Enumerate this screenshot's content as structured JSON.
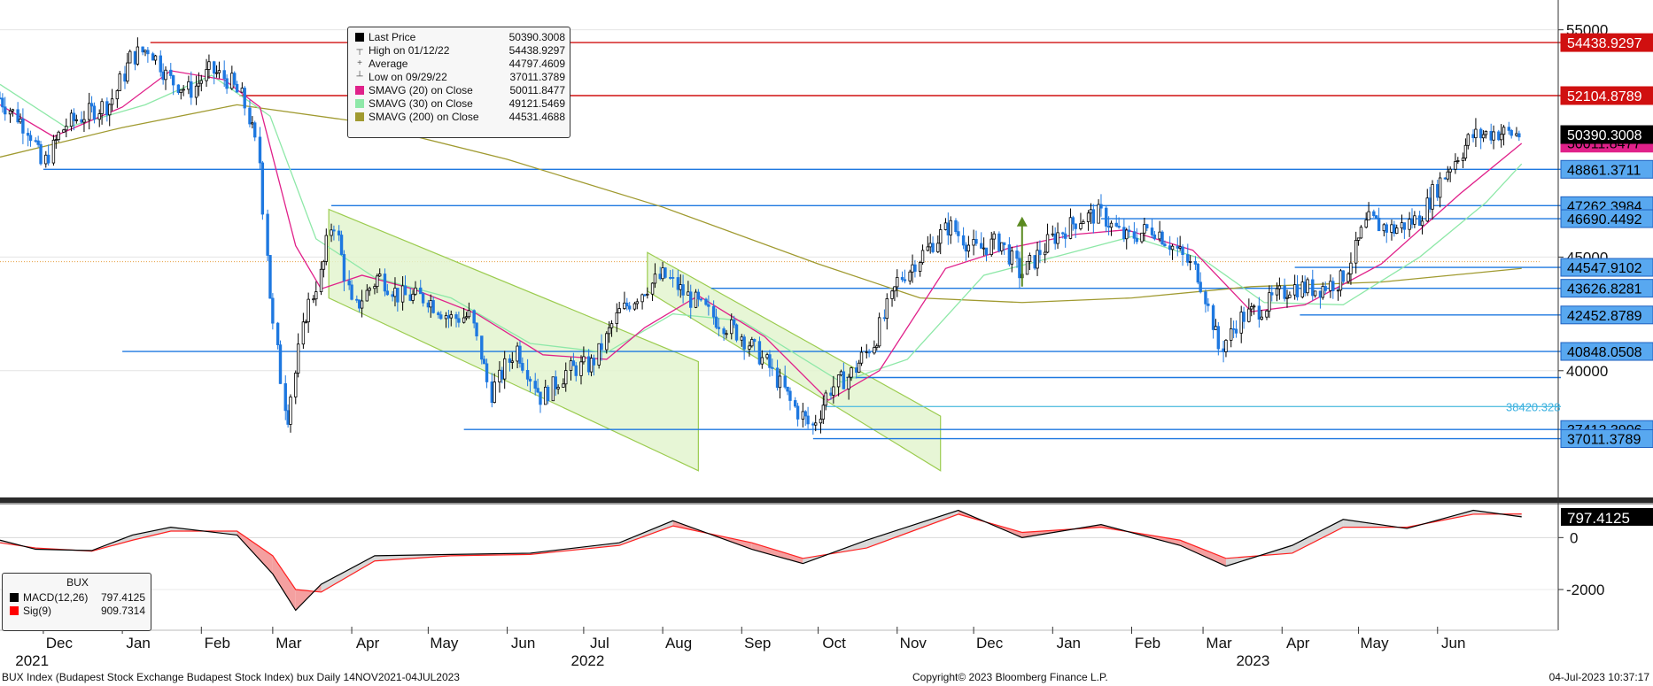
{
  "chart_data": {
    "type": "candlestick",
    "symbol": "BUX Index (Budapest Stock Exchange Budapest Stock Index) bux  Daily 14NOV2021-04JUL2023",
    "copyright": "Copyright© 2023 Bloomberg Finance L.P.",
    "timestamp": "04-Jul-2023 10:37:17",
    "price_axis": {
      "ticks": [
        "55000",
        "45000",
        "40000"
      ],
      "ylim": [
        34500,
        56000
      ]
    },
    "macd_axis": {
      "ticks": [
        "0",
        "-2000"
      ],
      "ylim": [
        -3500,
        1000
      ]
    },
    "months": [
      {
        "label": "Dec",
        "date": "2021-12-01"
      },
      {
        "label": "Jan",
        "date": "2022-01-01"
      },
      {
        "label": "Feb",
        "date": "2022-02-01"
      },
      {
        "label": "Mar",
        "date": "2022-03-01"
      },
      {
        "label": "Apr",
        "date": "2022-04-01"
      },
      {
        "label": "May",
        "date": "2022-05-01"
      },
      {
        "label": "Jun",
        "date": "2022-06-01"
      },
      {
        "label": "Jul",
        "date": "2022-07-01"
      },
      {
        "label": "Aug",
        "date": "2022-08-01"
      },
      {
        "label": "Sep",
        "date": "2022-09-01"
      },
      {
        "label": "Oct",
        "date": "2022-10-01"
      },
      {
        "label": "Nov",
        "date": "2022-11-01"
      },
      {
        "label": "Dec",
        "date": "2022-12-01"
      },
      {
        "label": "Jan",
        "date": "2023-01-01"
      },
      {
        "label": "Feb",
        "date": "2023-02-01"
      },
      {
        "label": "Mar",
        "date": "2023-03-01"
      },
      {
        "label": "Apr",
        "date": "2023-04-01"
      },
      {
        "label": "May",
        "date": "2023-05-01"
      },
      {
        "label": "Jun",
        "date": "2023-06-01"
      }
    ],
    "years": [
      {
        "label": "2021",
        "date": "2021-11-20"
      },
      {
        "label": "2022",
        "date": "2022-06-26"
      },
      {
        "label": "2023",
        "date": "2023-03-14"
      }
    ],
    "legend": {
      "last_price": {
        "label": "Last Price",
        "value": "50390.3008",
        "color": "#000000"
      },
      "high": {
        "label": "High on 01/12/22",
        "value": "54438.9297"
      },
      "average": {
        "label": "Average",
        "value": "44797.4609"
      },
      "low": {
        "label": "Low on 09/29/22",
        "value": "37011.3789"
      },
      "sma20": {
        "label": "SMAVG (20)  on Close",
        "value": "50011.8477",
        "color": "#e0218a"
      },
      "sma30": {
        "label": "SMAVG (30)  on Close",
        "value": "49121.5469",
        "color": "#8ee8a8"
      },
      "sma200": {
        "label": "SMAVG (200)  on Close",
        "value": "44531.4688",
        "color": "#a09a30"
      }
    },
    "macd_legend": {
      "title": "BUX",
      "macd": {
        "label": "MACD(12,26)",
        "value": "797.4125",
        "color": "#000000"
      },
      "sig": {
        "label": "Sig(9)",
        "value": "909.7314",
        "color": "#ff0000"
      }
    },
    "current_macd_label": "797.4125",
    "horizontal_levels": [
      {
        "value": 54438.9297,
        "label": "54438.9297",
        "color": "#d01010",
        "start": "2022-01-12"
      },
      {
        "value": 52104.8789,
        "label": "52104.8789",
        "color": "#d01010",
        "start": "2022-02-16"
      },
      {
        "value": 48861.3711,
        "label": "48861.3711",
        "color": "#1e78e0",
        "start": "2021-12-01"
      },
      {
        "value": 47262.3984,
        "label": "47262.3984",
        "color": "#1e78e0",
        "start": "2022-03-24"
      },
      {
        "value": 46690.4492,
        "label": "46690.4492",
        "color": "#1e78e0",
        "start": "2023-01-20"
      },
      {
        "value": 44547.9102,
        "label": "44547.9102",
        "color": "#1e78e0",
        "start": "2023-04-06"
      },
      {
        "value": 43626.8281,
        "label": "43626.8281",
        "color": "#1e78e0",
        "start": "2022-08-20"
      },
      {
        "value": 42452.8789,
        "label": "42452.8789",
        "color": "#1e78e0",
        "start": "2023-04-08"
      },
      {
        "value": 40848.0508,
        "label": "40848.0508",
        "color": "#1e78e0",
        "start": "2022-01-01"
      },
      {
        "value": 39700,
        "label": "",
        "color": "#1e78e0",
        "start": "2022-10-12"
      },
      {
        "value": 38420.328,
        "label": "38420.328",
        "color": "#5bc0e0",
        "start": "2022-10-04"
      },
      {
        "value": 37412.3906,
        "label": "37412.3906",
        "color": "#1e78e0",
        "start": "2022-05-15"
      },
      {
        "value": 37011.3789,
        "label": "37011.3789",
        "color": "#1e78e0",
        "start": "2022-09-29"
      }
    ],
    "last_price_label": "50390.3008",
    "sma20_label": "50011.8477",
    "channels": [
      {
        "from": "2022-03-23",
        "to": "2022-08-15",
        "top": [
          47100,
          40400
        ],
        "bottom": [
          43200,
          35600
        ]
      },
      {
        "from": "2022-07-26",
        "to": "2022-11-18",
        "top": [
          45200,
          38000
        ],
        "bottom": [
          43500,
          35600
        ]
      }
    ],
    "arrow": {
      "date": "2022-12-20",
      "from": 43700,
      "to": 46700,
      "color": "#5a8a20"
    },
    "ohlc": [
      {
        "date": "2021-11-14",
        "close": 52000
      },
      {
        "date": "2021-11-26",
        "close": 50600
      },
      {
        "date": "2021-12-01",
        "close": 49000
      },
      {
        "date": "2021-12-10",
        "close": 50800
      },
      {
        "date": "2021-12-20",
        "close": 51400
      },
      {
        "date": "2021-12-28",
        "close": 51800
      },
      {
        "date": "2022-01-05",
        "close": 53800
      },
      {
        "date": "2022-01-12",
        "close": 54200
      },
      {
        "date": "2022-01-20",
        "close": 52800
      },
      {
        "date": "2022-01-28",
        "close": 52300
      },
      {
        "date": "2022-02-05",
        "close": 53200
      },
      {
        "date": "2022-02-12",
        "close": 52800
      },
      {
        "date": "2022-02-18",
        "close": 51900
      },
      {
        "date": "2022-02-24",
        "close": 49500
      },
      {
        "date": "2022-03-01",
        "close": 42500
      },
      {
        "date": "2022-03-07",
        "close": 37800
      },
      {
        "date": "2022-03-14",
        "close": 42400
      },
      {
        "date": "2022-03-21",
        "close": 44500
      },
      {
        "date": "2022-03-25",
        "close": 46800
      },
      {
        "date": "2022-04-02",
        "close": 42600
      },
      {
        "date": "2022-04-12",
        "close": 44200
      },
      {
        "date": "2022-04-20",
        "close": 43300
      },
      {
        "date": "2022-05-01",
        "close": 43200
      },
      {
        "date": "2022-05-10",
        "close": 42300
      },
      {
        "date": "2022-05-18",
        "close": 42400
      },
      {
        "date": "2022-05-26",
        "close": 39000
      },
      {
        "date": "2022-06-05",
        "close": 41000
      },
      {
        "date": "2022-06-15",
        "close": 38800
      },
      {
        "date": "2022-06-25",
        "close": 40000
      },
      {
        "date": "2022-07-05",
        "close": 40300
      },
      {
        "date": "2022-07-15",
        "close": 42500
      },
      {
        "date": "2022-07-25",
        "close": 43600
      },
      {
        "date": "2022-08-02",
        "close": 44200
      },
      {
        "date": "2022-08-12",
        "close": 43200
      },
      {
        "date": "2022-08-22",
        "close": 42300
      },
      {
        "date": "2022-09-01",
        "close": 41600
      },
      {
        "date": "2022-09-12",
        "close": 40200
      },
      {
        "date": "2022-09-22",
        "close": 38400
      },
      {
        "date": "2022-09-29",
        "close": 37500
      },
      {
        "date": "2022-10-06",
        "close": 39200
      },
      {
        "date": "2022-10-14",
        "close": 39800
      },
      {
        "date": "2022-10-24",
        "close": 41400
      },
      {
        "date": "2022-11-02",
        "close": 44000
      },
      {
        "date": "2022-11-12",
        "close": 45200
      },
      {
        "date": "2022-11-22",
        "close": 46400
      },
      {
        "date": "2022-12-02",
        "close": 45300
      },
      {
        "date": "2022-12-12",
        "close": 45700
      },
      {
        "date": "2022-12-20",
        "close": 44200
      },
      {
        "date": "2023-01-01",
        "close": 45800
      },
      {
        "date": "2023-01-12",
        "close": 46700
      },
      {
        "date": "2023-01-20",
        "close": 46900
      },
      {
        "date": "2023-01-30",
        "close": 45800
      },
      {
        "date": "2023-02-10",
        "close": 46300
      },
      {
        "date": "2023-02-20",
        "close": 45200
      },
      {
        "date": "2023-02-28",
        "close": 44200
      },
      {
        "date": "2023-03-08",
        "close": 40900
      },
      {
        "date": "2023-03-16",
        "close": 42300
      },
      {
        "date": "2023-03-25",
        "close": 42800
      },
      {
        "date": "2023-04-05",
        "close": 43700
      },
      {
        "date": "2023-04-15",
        "close": 43600
      },
      {
        "date": "2023-04-25",
        "close": 44000
      },
      {
        "date": "2023-05-05",
        "close": 46600
      },
      {
        "date": "2023-05-15",
        "close": 46200
      },
      {
        "date": "2023-05-25",
        "close": 46700
      },
      {
        "date": "2023-06-05",
        "close": 48800
      },
      {
        "date": "2023-06-15",
        "close": 50300
      },
      {
        "date": "2023-06-24",
        "close": 50500
      },
      {
        "date": "2023-07-04",
        "close": 50390
      }
    ],
    "sma20": [
      {
        "date": "2021-11-14",
        "value": 51700
      },
      {
        "date": "2021-12-05",
        "value": 50300
      },
      {
        "date": "2022-01-01",
        "value": 51600
      },
      {
        "date": "2022-01-20",
        "value": 53200
      },
      {
        "date": "2022-02-10",
        "value": 52800
      },
      {
        "date": "2022-02-24",
        "value": 51600
      },
      {
        "date": "2022-03-10",
        "value": 45500
      },
      {
        "date": "2022-03-20",
        "value": 43600
      },
      {
        "date": "2022-04-05",
        "value": 44200
      },
      {
        "date": "2022-04-25",
        "value": 43600
      },
      {
        "date": "2022-05-20",
        "value": 42500
      },
      {
        "date": "2022-06-15",
        "value": 40700
      },
      {
        "date": "2022-07-10",
        "value": 40500
      },
      {
        "date": "2022-07-25",
        "value": 41900
      },
      {
        "date": "2022-08-15",
        "value": 43300
      },
      {
        "date": "2022-09-10",
        "value": 41500
      },
      {
        "date": "2022-10-05",
        "value": 38700
      },
      {
        "date": "2022-10-25",
        "value": 40000
      },
      {
        "date": "2022-11-20",
        "value": 44500
      },
      {
        "date": "2022-12-15",
        "value": 45400
      },
      {
        "date": "2023-01-10",
        "value": 46000
      },
      {
        "date": "2023-01-30",
        "value": 46200
      },
      {
        "date": "2023-02-25",
        "value": 45300
      },
      {
        "date": "2023-03-20",
        "value": 42600
      },
      {
        "date": "2023-04-10",
        "value": 42900
      },
      {
        "date": "2023-05-10",
        "value": 44700
      },
      {
        "date": "2023-06-10",
        "value": 47800
      },
      {
        "date": "2023-07-04",
        "value": 50000
      }
    ],
    "sma30": [
      {
        "date": "2021-11-14",
        "value": 52600
      },
      {
        "date": "2021-12-10",
        "value": 50700
      },
      {
        "date": "2022-01-10",
        "value": 51700
      },
      {
        "date": "2022-02-05",
        "value": 53000
      },
      {
        "date": "2022-02-28",
        "value": 51200
      },
      {
        "date": "2022-03-18",
        "value": 45800
      },
      {
        "date": "2022-04-10",
        "value": 44100
      },
      {
        "date": "2022-05-10",
        "value": 43200
      },
      {
        "date": "2022-06-10",
        "value": 41200
      },
      {
        "date": "2022-07-10",
        "value": 40800
      },
      {
        "date": "2022-08-05",
        "value": 42500
      },
      {
        "date": "2022-09-01",
        "value": 42200
      },
      {
        "date": "2022-10-10",
        "value": 39500
      },
      {
        "date": "2022-11-05",
        "value": 40500
      },
      {
        "date": "2022-12-05",
        "value": 44200
      },
      {
        "date": "2023-01-05",
        "value": 45100
      },
      {
        "date": "2023-02-01",
        "value": 45900
      },
      {
        "date": "2023-03-01",
        "value": 44900
      },
      {
        "date": "2023-03-25",
        "value": 43000
      },
      {
        "date": "2023-04-25",
        "value": 42900
      },
      {
        "date": "2023-05-25",
        "value": 45000
      },
      {
        "date": "2023-06-20",
        "value": 47400
      },
      {
        "date": "2023-07-04",
        "value": 49100
      }
    ],
    "sma200": [
      {
        "date": "2021-11-14",
        "value": 49400
      },
      {
        "date": "2022-01-01",
        "value": 50700
      },
      {
        "date": "2022-02-15",
        "value": 51700
      },
      {
        "date": "2022-04-01",
        "value": 51000
      },
      {
        "date": "2022-06-01",
        "value": 49300
      },
      {
        "date": "2022-08-01",
        "value": 47200
      },
      {
        "date": "2022-10-01",
        "value": 44700
      },
      {
        "date": "2022-11-10",
        "value": 43200
      },
      {
        "date": "2022-12-20",
        "value": 43000
      },
      {
        "date": "2023-02-01",
        "value": 43200
      },
      {
        "date": "2023-03-20",
        "value": 43700
      },
      {
        "date": "2023-05-10",
        "value": 43900
      },
      {
        "date": "2023-07-04",
        "value": 44500
      }
    ],
    "macd": [
      {
        "date": "2021-11-14",
        "value": -100
      },
      {
        "date": "2021-11-28",
        "value": -450
      },
      {
        "date": "2021-12-20",
        "value": -500
      },
      {
        "date": "2022-01-05",
        "value": 100
      },
      {
        "date": "2022-01-20",
        "value": 400
      },
      {
        "date": "2022-02-15",
        "value": 100
      },
      {
        "date": "2022-03-01",
        "value": -1400
      },
      {
        "date": "2022-03-10",
        "value": -2800
      },
      {
        "date": "2022-03-20",
        "value": -1800
      },
      {
        "date": "2022-04-10",
        "value": -700
      },
      {
        "date": "2022-05-10",
        "value": -650
      },
      {
        "date": "2022-06-10",
        "value": -600
      },
      {
        "date": "2022-07-15",
        "value": -200
      },
      {
        "date": "2022-08-05",
        "value": 650
      },
      {
        "date": "2022-09-05",
        "value": -450
      },
      {
        "date": "2022-09-25",
        "value": -1000
      },
      {
        "date": "2022-10-20",
        "value": -100
      },
      {
        "date": "2022-11-25",
        "value": 1050
      },
      {
        "date": "2022-12-20",
        "value": 0
      },
      {
        "date": "2023-01-20",
        "value": 500
      },
      {
        "date": "2023-02-20",
        "value": -300
      },
      {
        "date": "2023-03-10",
        "value": -1100
      },
      {
        "date": "2023-04-05",
        "value": -300
      },
      {
        "date": "2023-04-25",
        "value": 700
      },
      {
        "date": "2023-05-20",
        "value": 350
      },
      {
        "date": "2023-06-15",
        "value": 1050
      },
      {
        "date": "2023-07-04",
        "value": 800
      }
    ],
    "signal": [
      {
        "date": "2021-11-14",
        "value": -200
      },
      {
        "date": "2021-11-28",
        "value": -400
      },
      {
        "date": "2021-12-20",
        "value": -520
      },
      {
        "date": "2022-01-05",
        "value": -100
      },
      {
        "date": "2022-01-20",
        "value": 250
      },
      {
        "date": "2022-02-15",
        "value": 250
      },
      {
        "date": "2022-03-01",
        "value": -700
      },
      {
        "date": "2022-03-10",
        "value": -2000
      },
      {
        "date": "2022-03-20",
        "value": -2100
      },
      {
        "date": "2022-04-10",
        "value": -900
      },
      {
        "date": "2022-05-10",
        "value": -700
      },
      {
        "date": "2022-06-10",
        "value": -650
      },
      {
        "date": "2022-07-15",
        "value": -300
      },
      {
        "date": "2022-08-05",
        "value": 450
      },
      {
        "date": "2022-09-05",
        "value": -200
      },
      {
        "date": "2022-09-25",
        "value": -800
      },
      {
        "date": "2022-10-20",
        "value": -400
      },
      {
        "date": "2022-11-25",
        "value": 900
      },
      {
        "date": "2022-12-20",
        "value": 200
      },
      {
        "date": "2023-01-20",
        "value": 400
      },
      {
        "date": "2023-02-20",
        "value": -100
      },
      {
        "date": "2023-03-10",
        "value": -800
      },
      {
        "date": "2023-04-05",
        "value": -600
      },
      {
        "date": "2023-04-25",
        "value": 400
      },
      {
        "date": "2023-05-20",
        "value": 400
      },
      {
        "date": "2023-06-15",
        "value": 900
      },
      {
        "date": "2023-07-04",
        "value": 910
      }
    ]
  }
}
